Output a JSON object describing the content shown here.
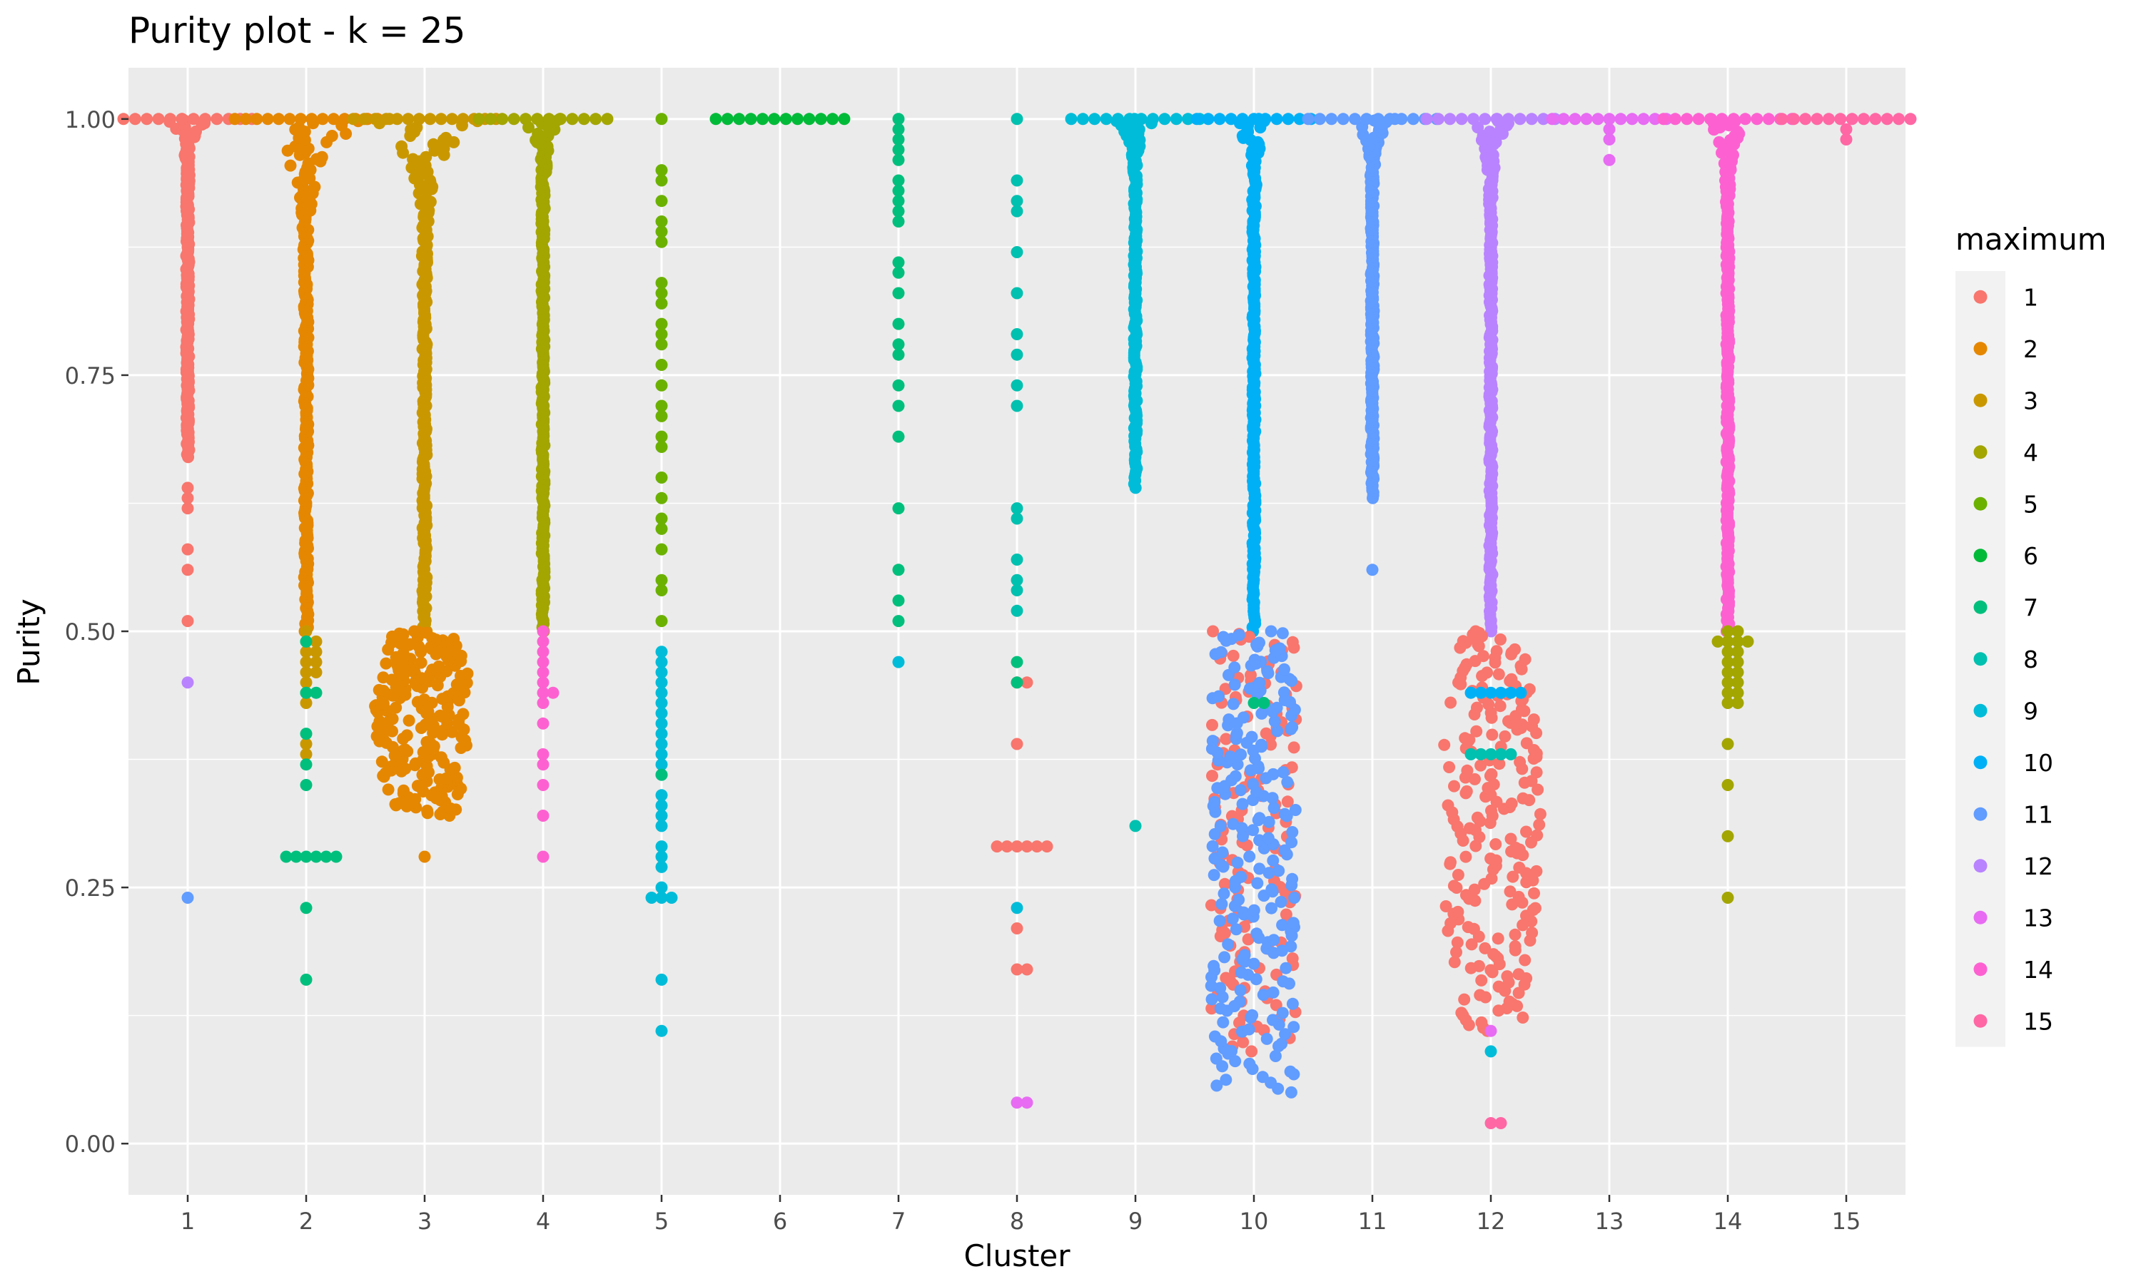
{
  "chart_data": {
    "type": "scatter",
    "subtype": "beeswarm",
    "title": "Purity plot - k = 25",
    "xlabel": "Cluster",
    "ylabel": "Purity",
    "categories": [
      "1",
      "2",
      "3",
      "4",
      "5",
      "6",
      "7",
      "8",
      "9",
      "10",
      "11",
      "12",
      "13",
      "14",
      "15"
    ],
    "ylim": [
      -0.05,
      1.05
    ],
    "y_ticks": [
      0.0,
      0.25,
      0.5,
      0.75,
      1.0
    ],
    "y_tick_labels": [
      "0.00",
      "0.25",
      "0.50",
      "0.75",
      "1.00"
    ],
    "grid": true,
    "background": "#EBEBEB",
    "legend": {
      "title": "maximum",
      "position": "right",
      "entries": [
        "1",
        "2",
        "3",
        "4",
        "5",
        "6",
        "7",
        "8",
        "9",
        "10",
        "11",
        "12",
        "13",
        "14",
        "15"
      ],
      "colors": [
        "#F8766D",
        "#E58700",
        "#C99800",
        "#A3A500",
        "#6BB100",
        "#00BA38",
        "#00BF7D",
        "#00C0AF",
        "#00BCD8",
        "#00B0F6",
        "#619CFF",
        "#B983FF",
        "#E76BF3",
        "#FD61D1",
        "#FF67A4"
      ]
    },
    "clusters": [
      {
        "cluster": "1",
        "groups": [
          {
            "maximum": "1",
            "count": 320,
            "range": [
              0.67,
              1.0
            ],
            "top_spread": 45
          },
          {
            "maximum": "1",
            "values": [
              0.64,
              0.63,
              0.62,
              0.58,
              0.56,
              0.51
            ]
          },
          {
            "maximum": "12",
            "values": [
              0.45
            ]
          },
          {
            "maximum": "11",
            "values": [
              0.24
            ]
          }
        ]
      },
      {
        "cluster": "2",
        "groups": [
          {
            "maximum": "2",
            "count": 900,
            "range": [
              0.5,
              1.0
            ],
            "top_spread": 50,
            "shape": "funnel"
          },
          {
            "maximum": "3",
            "values": [
              0.5,
              0.49,
              0.49,
              0.48,
              0.48,
              0.47,
              0.47,
              0.46,
              0.46,
              0.45,
              0.44,
              0.43,
              0.39,
              0.38
            ]
          },
          {
            "maximum": "7",
            "values": [
              0.49,
              0.44,
              0.44,
              0.4,
              0.37,
              0.35,
              0.28,
              0.28,
              0.28,
              0.28,
              0.28,
              0.28,
              0.23,
              0.16
            ]
          }
        ]
      },
      {
        "cluster": "3",
        "groups": [
          {
            "maximum": "3",
            "count": 900,
            "range": [
              0.5,
              1.0
            ],
            "top_spread": 50,
            "shape": "funnel"
          },
          {
            "maximum": "2",
            "count": 500,
            "range": [
              0.32,
              0.5
            ],
            "dense": true
          },
          {
            "maximum": "2",
            "values": [
              0.28
            ]
          }
        ]
      },
      {
        "cluster": "4",
        "groups": [
          {
            "maximum": "4",
            "count": 400,
            "range": [
              0.5,
              1.0
            ],
            "top_spread": 45
          },
          {
            "maximum": "14",
            "values": [
              0.5,
              0.49,
              0.48,
              0.47,
              0.46,
              0.45,
              0.44,
              0.44,
              0.43,
              0.41,
              0.38,
              0.37,
              0.35,
              0.32,
              0.28
            ]
          }
        ]
      },
      {
        "cluster": "5",
        "groups": [
          {
            "maximum": "5",
            "values": [
              1.0,
              0.95,
              0.94,
              0.92,
              0.9,
              0.89,
              0.88,
              0.84,
              0.83,
              0.82,
              0.8,
              0.79,
              0.78,
              0.76,
              0.74,
              0.72,
              0.71,
              0.69,
              0.68,
              0.65,
              0.63,
              0.61,
              0.6,
              0.58,
              0.55,
              0.54,
              0.51
            ]
          },
          {
            "maximum": "9",
            "values": [
              0.48,
              0.47,
              0.46,
              0.45,
              0.44,
              0.43,
              0.42,
              0.41,
              0.4,
              0.39,
              0.38,
              0.37,
              0.36,
              0.34,
              0.33,
              0.32,
              0.31,
              0.29,
              0.28,
              0.27,
              0.25,
              0.24,
              0.24,
              0.24,
              0.16,
              0.11
            ]
          },
          {
            "maximum": "7",
            "values": [
              0.36
            ]
          }
        ]
      },
      {
        "cluster": "6",
        "groups": [
          {
            "maximum": "6",
            "count": 90,
            "range": [
              1.0,
              1.0
            ],
            "top_spread": 45
          }
        ]
      },
      {
        "cluster": "7",
        "groups": [
          {
            "maximum": "7",
            "values": [
              1.0,
              0.99,
              0.98,
              0.97,
              0.96,
              0.94,
              0.93,
              0.92,
              0.91,
              0.9,
              0.86,
              0.85,
              0.83,
              0.8,
              0.78,
              0.77,
              0.74,
              0.72,
              0.69,
              0.62,
              0.56,
              0.53,
              0.51
            ]
          },
          {
            "maximum": "9",
            "values": [
              0.47
            ]
          }
        ]
      },
      {
        "cluster": "8",
        "groups": [
          {
            "maximum": "8",
            "values": [
              1.0,
              0.94,
              0.92,
              0.91,
              0.87,
              0.83,
              0.79,
              0.77,
              0.74,
              0.72,
              0.62,
              0.61,
              0.57,
              0.55,
              0.54,
              0.52
            ]
          },
          {
            "maximum": "1",
            "values": [
              0.45,
              0.45,
              0.39,
              0.29,
              0.29,
              0.29,
              0.29,
              0.29,
              0.29,
              0.21,
              0.17,
              0.17
            ]
          },
          {
            "maximum": "9",
            "values": [
              0.23
            ]
          },
          {
            "maximum": "13",
            "values": [
              0.04,
              0.04
            ]
          },
          {
            "maximum": "7",
            "values": [
              0.47,
              0.45
            ]
          }
        ]
      },
      {
        "cluster": "9",
        "groups": [
          {
            "maximum": "9",
            "count": 160,
            "range": [
              0.64,
              1.0
            ],
            "top_spread": 45
          },
          {
            "maximum": "8",
            "values": [
              0.31
            ]
          }
        ]
      },
      {
        "cluster": "10",
        "groups": [
          {
            "maximum": "10",
            "count": 450,
            "range": [
              0.5,
              1.0
            ],
            "top_spread": 40
          },
          {
            "maximum": "1",
            "count": 140,
            "range": [
              0.09,
              0.5
            ]
          },
          {
            "maximum": "11",
            "count": 260,
            "range": [
              0.05,
              0.5
            ]
          },
          {
            "maximum": "7",
            "values": [
              0.43,
              0.43
            ]
          }
        ]
      },
      {
        "cluster": "11",
        "groups": [
          {
            "maximum": "11",
            "count": 450,
            "range": [
              0.63,
              1.0
            ],
            "top_spread": 45
          },
          {
            "maximum": "11",
            "values": [
              0.56
            ]
          }
        ]
      },
      {
        "cluster": "12",
        "groups": [
          {
            "maximum": "12",
            "count": 450,
            "range": [
              0.5,
              1.0
            ],
            "top_spread": 45
          },
          {
            "maximum": "1",
            "count": 700,
            "range": [
              0.11,
              0.5
            ],
            "dense": true
          },
          {
            "maximum": "10",
            "values": [
              0.44,
              0.44,
              0.44,
              0.44,
              0.44,
              0.44
            ]
          },
          {
            "maximum": "8",
            "values": [
              0.38,
              0.38,
              0.38,
              0.38,
              0.38
            ]
          },
          {
            "maximum": "9",
            "values": [
              0.09
            ]
          },
          {
            "maximum": "13",
            "values": [
              0.11
            ]
          },
          {
            "maximum": "15",
            "values": [
              0.02,
              0.02
            ]
          }
        ]
      },
      {
        "cluster": "13",
        "groups": [
          {
            "maximum": "13",
            "count": 60,
            "range": [
              1.0,
              1.0
            ],
            "top_spread": 40
          },
          {
            "maximum": "13",
            "values": [
              0.99,
              0.98,
              0.96
            ]
          }
        ]
      },
      {
        "cluster": "14",
        "groups": [
          {
            "maximum": "14",
            "count": 450,
            "range": [
              0.5,
              1.0
            ],
            "top_spread": 45
          },
          {
            "maximum": "4",
            "values": [
              0.5,
              0.5,
              0.49,
              0.49,
              0.49,
              0.49,
              0.48,
              0.48,
              0.47,
              0.47,
              0.46,
              0.46,
              0.45,
              0.45,
              0.44,
              0.44,
              0.43,
              0.43,
              0.39,
              0.35,
              0.3,
              0.24
            ]
          }
        ]
      },
      {
        "cluster": "15",
        "groups": [
          {
            "maximum": "15",
            "count": 80,
            "range": [
              1.0,
              1.0
            ],
            "top_spread": 45
          },
          {
            "maximum": "15",
            "values": [
              0.99,
              0.98
            ]
          }
        ]
      }
    ]
  }
}
